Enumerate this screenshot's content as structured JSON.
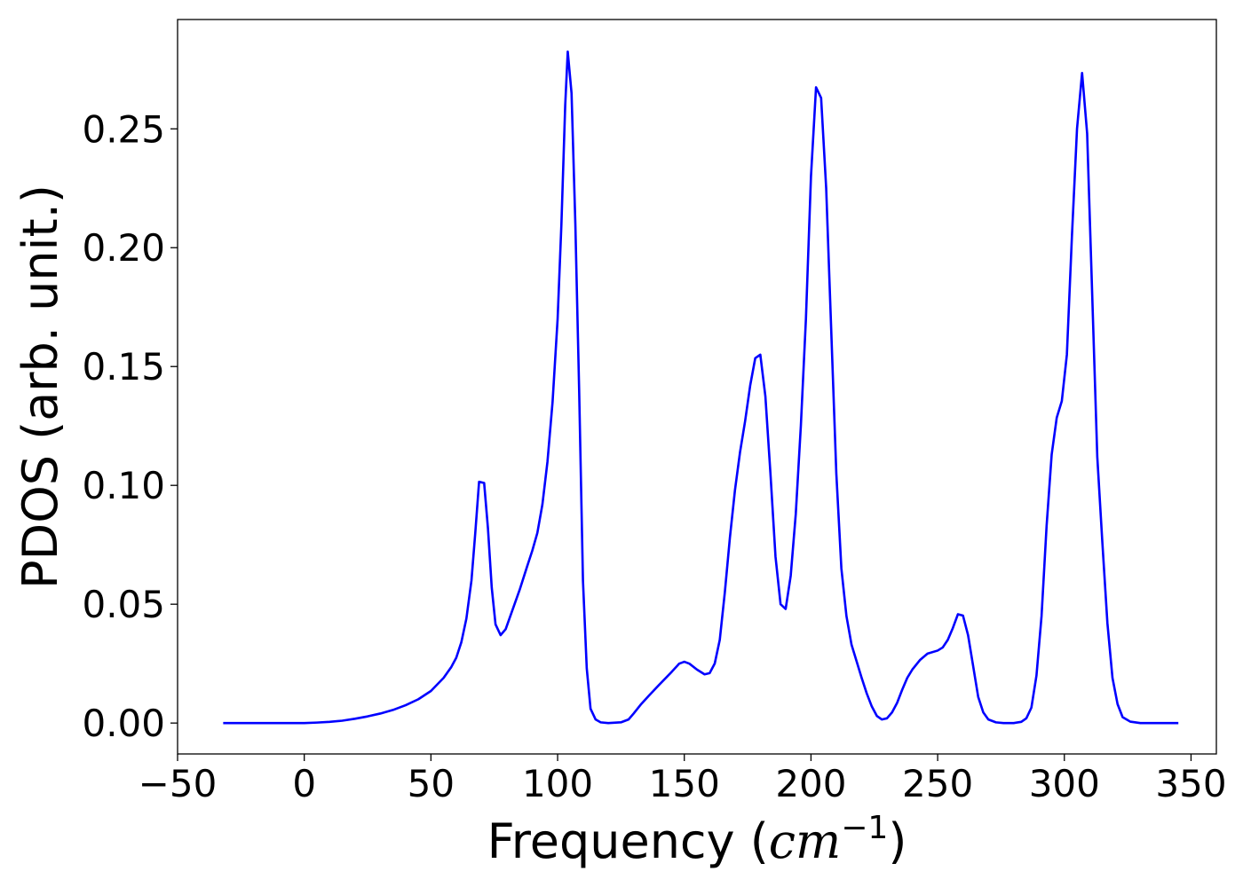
{
  "chart_data": {
    "type": "line",
    "title": "",
    "xlabel": "Frequency",
    "xlabel_unit_base": "cm",
    "xlabel_unit_exp": "−1",
    "ylabel": "PDOS (arb. unit.)",
    "xlim": [
      -50,
      360
    ],
    "ylim": [
      -0.013,
      0.296
    ],
    "xticks": [
      -50,
      0,
      50,
      100,
      150,
      200,
      250,
      300,
      350
    ],
    "xtick_labels": [
      "−50",
      "0",
      "50",
      "100",
      "150",
      "200",
      "250",
      "300",
      "350"
    ],
    "yticks": [
      0.0,
      0.05,
      0.1,
      0.15,
      0.2,
      0.25
    ],
    "ytick_labels": [
      "0.00",
      "0.05",
      "0.10",
      "0.15",
      "0.20",
      "0.25"
    ],
    "grid": false,
    "legend": "none",
    "series": [
      {
        "color": "#0000ff",
        "points": [
          [
            -32,
            0.0
          ],
          [
            -10,
            0.0
          ],
          [
            0,
            0.0
          ],
          [
            5,
            0.0002
          ],
          [
            10,
            0.0005
          ],
          [
            15,
            0.001
          ],
          [
            20,
            0.0018
          ],
          [
            25,
            0.0028
          ],
          [
            30,
            0.004
          ],
          [
            35,
            0.0055
          ],
          [
            40,
            0.0075
          ],
          [
            45,
            0.01
          ],
          [
            50,
            0.0135
          ],
          [
            55,
            0.019
          ],
          [
            58,
            0.0235
          ],
          [
            60,
            0.0275
          ],
          [
            62,
            0.034
          ],
          [
            64,
            0.044
          ],
          [
            66,
            0.06
          ],
          [
            67.5,
            0.08
          ],
          [
            69,
            0.1015
          ],
          [
            71,
            0.101
          ],
          [
            72.5,
            0.082
          ],
          [
            74,
            0.057
          ],
          [
            75.5,
            0.0415
          ],
          [
            77.5,
            0.037
          ],
          [
            79.5,
            0.0395
          ],
          [
            82,
            0.047
          ],
          [
            85,
            0.056
          ],
          [
            88,
            0.066
          ],
          [
            90,
            0.0725
          ],
          [
            92,
            0.08
          ],
          [
            94,
            0.092
          ],
          [
            96,
            0.11
          ],
          [
            98,
            0.135
          ],
          [
            100,
            0.17
          ],
          [
            101.5,
            0.21
          ],
          [
            103,
            0.26
          ],
          [
            104,
            0.2825
          ],
          [
            105.5,
            0.265
          ],
          [
            107,
            0.21
          ],
          [
            108.5,
            0.14
          ],
          [
            110,
            0.06
          ],
          [
            111.5,
            0.023
          ],
          [
            113,
            0.006
          ],
          [
            115,
            0.0015
          ],
          [
            117,
            0.0003
          ],
          [
            120,
            0.0
          ],
          [
            125,
            0.0003
          ],
          [
            128,
            0.0015
          ],
          [
            130,
            0.004
          ],
          [
            133,
            0.008
          ],
          [
            136,
            0.0115
          ],
          [
            140,
            0.016
          ],
          [
            145,
            0.0215
          ],
          [
            148,
            0.025
          ],
          [
            150,
            0.0258
          ],
          [
            152,
            0.025
          ],
          [
            155,
            0.0225
          ],
          [
            158,
            0.0205
          ],
          [
            160,
            0.021
          ],
          [
            162,
            0.025
          ],
          [
            164,
            0.035
          ],
          [
            166,
            0.055
          ],
          [
            168,
            0.078
          ],
          [
            170,
            0.098
          ],
          [
            172,
            0.114
          ],
          [
            174,
            0.127
          ],
          [
            176,
            0.142
          ],
          [
            178,
            0.1535
          ],
          [
            180,
            0.155
          ],
          [
            182,
            0.1375
          ],
          [
            184,
            0.105
          ],
          [
            186,
            0.07
          ],
          [
            188,
            0.05
          ],
          [
            190,
            0.048
          ],
          [
            192,
            0.062
          ],
          [
            194,
            0.088
          ],
          [
            196,
            0.125
          ],
          [
            198,
            0.17
          ],
          [
            200,
            0.23
          ],
          [
            202,
            0.2675
          ],
          [
            204,
            0.263
          ],
          [
            206,
            0.225
          ],
          [
            208,
            0.165
          ],
          [
            210,
            0.105
          ],
          [
            212,
            0.065
          ],
          [
            214,
            0.045
          ],
          [
            216,
            0.033
          ],
          [
            218,
            0.026
          ],
          [
            220,
            0.019
          ],
          [
            222,
            0.0125
          ],
          [
            224,
            0.007
          ],
          [
            226,
            0.003
          ],
          [
            228,
            0.0015
          ],
          [
            230,
            0.002
          ],
          [
            232,
            0.0045
          ],
          [
            234,
            0.0085
          ],
          [
            236,
            0.014
          ],
          [
            238,
            0.019
          ],
          [
            240,
            0.0225
          ],
          [
            243,
            0.0265
          ],
          [
            246,
            0.0292
          ],
          [
            250,
            0.0305
          ],
          [
            252,
            0.0318
          ],
          [
            254,
            0.035
          ],
          [
            256,
            0.04
          ],
          [
            258,
            0.0458
          ],
          [
            260,
            0.0452
          ],
          [
            262,
            0.037
          ],
          [
            264,
            0.024
          ],
          [
            266,
            0.011
          ],
          [
            268,
            0.0045
          ],
          [
            270,
            0.0015
          ],
          [
            273,
            0.0003
          ],
          [
            276,
            0.0
          ],
          [
            280,
            0.0
          ],
          [
            283,
            0.0005
          ],
          [
            285,
            0.002
          ],
          [
            287,
            0.0065
          ],
          [
            289,
            0.02
          ],
          [
            291,
            0.045
          ],
          [
            293,
            0.083
          ],
          [
            295,
            0.113
          ],
          [
            297,
            0.1285
          ],
          [
            299,
            0.1355
          ],
          [
            301,
            0.155
          ],
          [
            303,
            0.205
          ],
          [
            305,
            0.25
          ],
          [
            307,
            0.2735
          ],
          [
            309,
            0.248
          ],
          [
            311,
            0.18
          ],
          [
            313,
            0.112
          ],
          [
            315,
            0.076
          ],
          [
            317,
            0.042
          ],
          [
            319,
            0.019
          ],
          [
            321,
            0.008
          ],
          [
            323,
            0.0025
          ],
          [
            326,
            0.0006
          ],
          [
            330,
            0.0
          ],
          [
            345,
            0.0
          ]
        ]
      }
    ]
  }
}
